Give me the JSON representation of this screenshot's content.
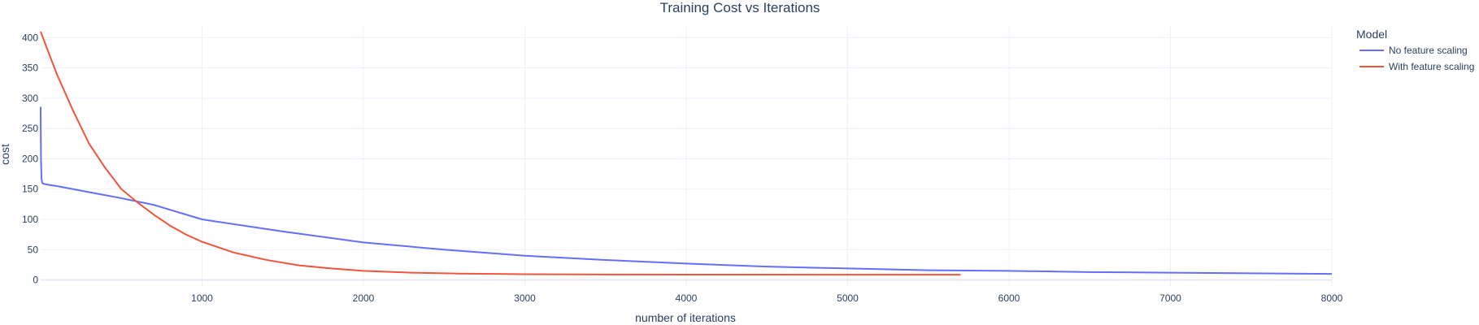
{
  "chart_data": {
    "type": "line",
    "title": "Training Cost vs Iterations",
    "xlabel": "number of iterations",
    "ylabel": "cost",
    "xlim": [
      0,
      8000
    ],
    "ylim": [
      -10,
      418
    ],
    "xticks": [
      1000,
      2000,
      3000,
      4000,
      5000,
      6000,
      7000,
      8000
    ],
    "yticks": [
      0,
      50,
      100,
      150,
      200,
      250,
      300,
      350,
      400
    ],
    "grid": true,
    "legend": {
      "title": "Model",
      "placement": "top-right-outside"
    },
    "series": [
      {
        "name": "No feature scaling",
        "color": "#636efa",
        "x": [
          0,
          1,
          2,
          5,
          10,
          20,
          50,
          100,
          200,
          300,
          500,
          700,
          1000,
          1500,
          2000,
          2500,
          3000,
          3500,
          4000,
          4500,
          5000,
          5500,
          6000,
          6500,
          7000,
          7500,
          8000
        ],
        "y": [
          286,
          240,
          200,
          168,
          160,
          158.5,
          157,
          155,
          150,
          145,
          135,
          124,
          100,
          80,
          62,
          50,
          40,
          33,
          27,
          22,
          19,
          16,
          15,
          13,
          12,
          11,
          10
        ]
      },
      {
        "name": "With feature scaling",
        "color": "#ef553b",
        "x": [
          0,
          100,
          200,
          300,
          400,
          500,
          600,
          700,
          800,
          900,
          1000,
          1200,
          1400,
          1600,
          1800,
          2000,
          2300,
          2600,
          3000,
          3500,
          4000,
          4500,
          5000,
          5500,
          5700
        ],
        "y": [
          410,
          340,
          280,
          225,
          185,
          150,
          128,
          108,
          90,
          75,
          63,
          45,
          33,
          24,
          19,
          15,
          12,
          10.5,
          9.5,
          9,
          8.8,
          8.7,
          8.6,
          8.6,
          8.6
        ]
      }
    ]
  }
}
